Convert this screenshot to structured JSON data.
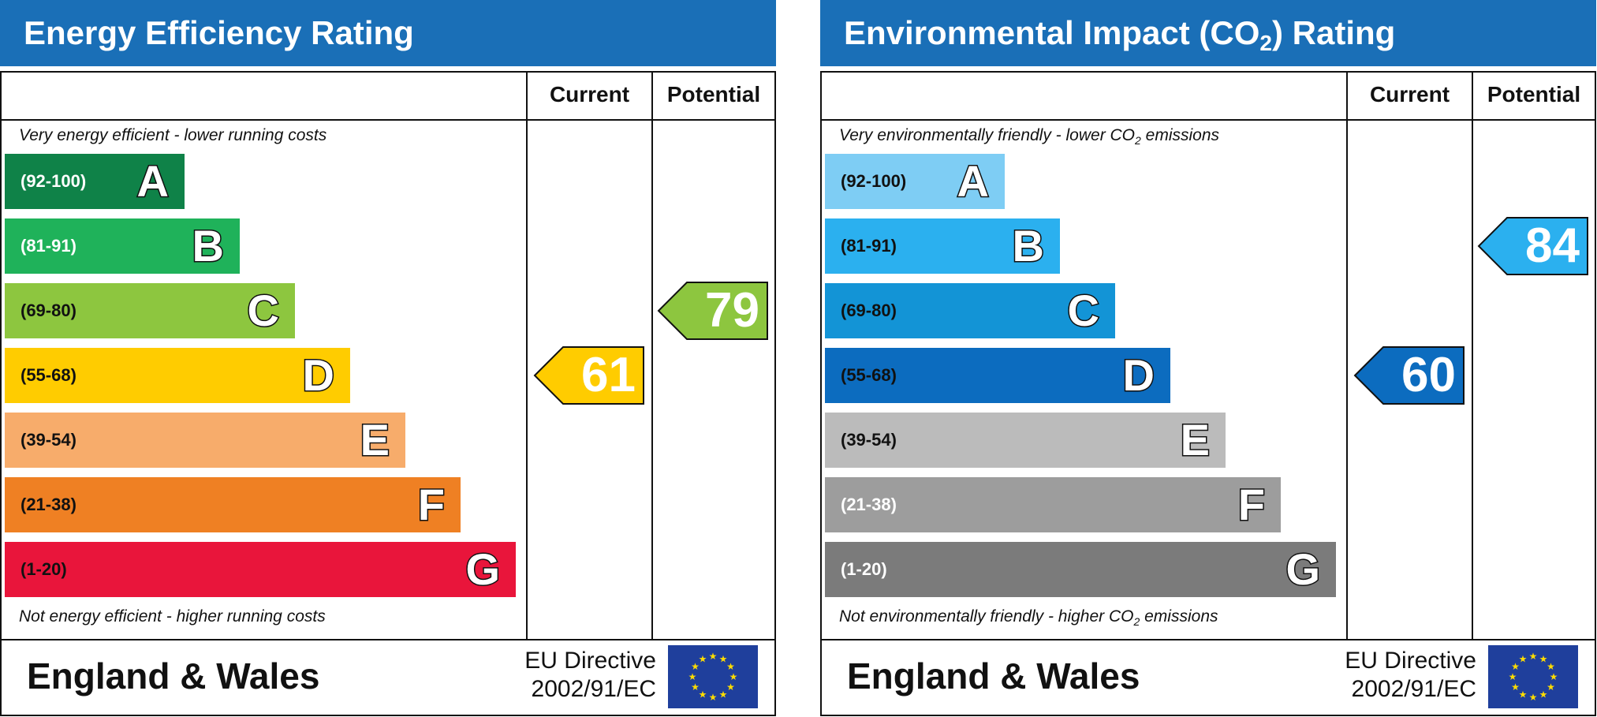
{
  "chart_data": [
    {
      "type": "bar",
      "title": "Energy Efficiency Rating",
      "columns": [
        "Current",
        "Potential"
      ],
      "top_note": "Very energy efficient - lower running costs",
      "bottom_note": "Not energy efficient - higher running costs",
      "bands": [
        {
          "range": "(92-100)",
          "letter": "A",
          "color": "#0f8248",
          "text_color": "#ffffff"
        },
        {
          "range": "(81-91)",
          "letter": "B",
          "color": "#1fb25a",
          "text_color": "#ffffff"
        },
        {
          "range": "(69-80)",
          "letter": "C",
          "color": "#8dc63f",
          "text_color": "#111111"
        },
        {
          "range": "(55-68)",
          "letter": "D",
          "color": "#ffcc00",
          "text_color": "#111111"
        },
        {
          "range": "(39-54)",
          "letter": "E",
          "color": "#f7ac6b",
          "text_color": "#111111"
        },
        {
          "range": "(21-38)",
          "letter": "F",
          "color": "#ef8023",
          "text_color": "#111111"
        },
        {
          "range": "(1-20)",
          "letter": "G",
          "color": "#e9153b",
          "text_color": "#111111"
        }
      ],
      "current": {
        "value": 61,
        "band": "D",
        "color": "#ffcc00"
      },
      "potential": {
        "value": 79,
        "band": "C",
        "color": "#8dc63f"
      },
      "footer": {
        "region": "England & Wales",
        "directive_line1": "EU Directive",
        "directive_line2": "2002/91/EC"
      }
    },
    {
      "type": "bar",
      "title_main": "Environmental Impact (CO",
      "title_sub": "2",
      "title_end": ") Rating",
      "columns": [
        "Current",
        "Potential"
      ],
      "top_note_a": "Very environmentally friendly - lower CO",
      "top_note_sub": "2",
      "top_note_b": " emissions",
      "bottom_note_a": "Not environmentally friendly - higher CO",
      "bottom_note_sub": "2",
      "bottom_note_b": " emissions",
      "bands": [
        {
          "range": "(92-100)",
          "letter": "A",
          "color": "#7ecdf4",
          "text_color": "#111111"
        },
        {
          "range": "(81-91)",
          "letter": "B",
          "color": "#2bb0ef",
          "text_color": "#111111"
        },
        {
          "range": "(69-80)",
          "letter": "C",
          "color": "#1394d6",
          "text_color": "#111111"
        },
        {
          "range": "(55-68)",
          "letter": "D",
          "color": "#0c6cbf",
          "text_color": "#111111"
        },
        {
          "range": "(39-54)",
          "letter": "E",
          "color": "#bbbbbb",
          "text_color": "#111111"
        },
        {
          "range": "(21-38)",
          "letter": "F",
          "color": "#9d9d9d",
          "text_color": "#ffffff"
        },
        {
          "range": "(1-20)",
          "letter": "G",
          "color": "#7b7b7b",
          "text_color": "#ffffff"
        }
      ],
      "current": {
        "value": 60,
        "band": "D",
        "color": "#0c6cbf"
      },
      "potential": {
        "value": 84,
        "band": "B",
        "color": "#2bb0ef"
      },
      "footer": {
        "region": "England & Wales",
        "directive_line1": "EU Directive",
        "directive_line2": "2002/91/EC"
      }
    }
  ]
}
